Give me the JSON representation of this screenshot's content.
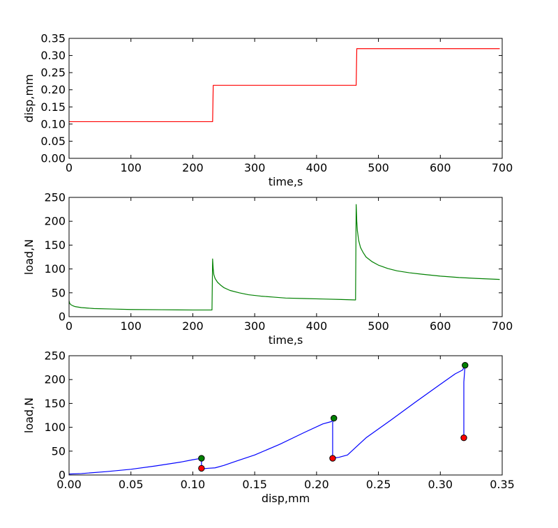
{
  "chart_data": [
    {
      "type": "line",
      "xlabel": "time,s",
      "ylabel": "disp,mm",
      "xlim": [
        0,
        700
      ],
      "ylim": [
        0,
        0.35
      ],
      "xticks": [
        0,
        100,
        200,
        300,
        400,
        500,
        600,
        700
      ],
      "xtick_labels": [
        "0",
        "100",
        "200",
        "300",
        "400",
        "500",
        "600",
        "700"
      ],
      "yticks": [
        0,
        0.05,
        0.1,
        0.15,
        0.2,
        0.25,
        0.3,
        0.35
      ],
      "ytick_labels": [
        "0.00",
        "0.05",
        "0.10",
        "0.15",
        "0.20",
        "0.25",
        "0.30",
        "0.35"
      ],
      "grid": false,
      "series": [
        {
          "color": "#ff0000",
          "x": [
            0,
            232,
            233,
            464,
            465,
            696
          ],
          "y": [
            0.107,
            0.107,
            0.213,
            0.213,
            0.32,
            0.32
          ]
        }
      ]
    },
    {
      "type": "line",
      "xlabel": "time,s",
      "ylabel": "load,N",
      "xlim": [
        0,
        700
      ],
      "ylim": [
        0,
        250
      ],
      "xticks": [
        0,
        100,
        200,
        300,
        400,
        500,
        600,
        700
      ],
      "xtick_labels": [
        "0",
        "100",
        "200",
        "300",
        "400",
        "500",
        "600",
        "700"
      ],
      "yticks": [
        0,
        50,
        100,
        150,
        200,
        250
      ],
      "ytick_labels": [
        "0",
        "50",
        "100",
        "150",
        "200",
        "250"
      ],
      "grid": false,
      "series": [
        {
          "color": "#008000",
          "x": [
            0,
            1,
            3,
            6,
            10,
            20,
            40,
            70,
            100,
            150,
            200,
            231,
            232,
            233,
            234,
            236,
            240,
            245,
            250,
            260,
            275,
            290,
            310,
            330,
            350,
            380,
            410,
            440,
            463,
            464,
            465,
            466,
            468,
            471,
            475,
            480,
            490,
            500,
            515,
            530,
            550,
            570,
            600,
            630,
            660,
            696
          ],
          "y": [
            33,
            28,
            25,
            23,
            21,
            19,
            17,
            16,
            15,
            14.5,
            14,
            14,
            121,
            100,
            88,
            80,
            72,
            66,
            61,
            55,
            50,
            46,
            43,
            41,
            39,
            38,
            37,
            36,
            35,
            235,
            200,
            180,
            160,
            145,
            135,
            125,
            115,
            108,
            101,
            96,
            92,
            89,
            85,
            82,
            80,
            78
          ]
        }
      ]
    },
    {
      "type": "line",
      "xlabel": "disp,mm",
      "ylabel": "load,N",
      "xlim": [
        0,
        0.35
      ],
      "ylim": [
        0,
        250
      ],
      "xticks": [
        0,
        0.05,
        0.1,
        0.15,
        0.2,
        0.25,
        0.3,
        0.35
      ],
      "xtick_labels": [
        "0.00",
        "0.05",
        "0.10",
        "0.15",
        "0.20",
        "0.25",
        "0.30",
        "0.35"
      ],
      "yticks": [
        0,
        50,
        100,
        150,
        200,
        250
      ],
      "ytick_labels": [
        "0",
        "50",
        "100",
        "150",
        "200",
        "250"
      ],
      "grid": false,
      "series": [
        {
          "color": "#0000ff",
          "x": [
            0,
            0.01,
            0.03,
            0.05,
            0.07,
            0.09,
            0.1,
            0.107,
            0.107,
            0.108,
            0.112,
            0.118,
            0.125,
            0.135,
            0.15,
            0.17,
            0.19,
            0.205,
            0.212,
            0.214,
            0.213,
            0.213,
            0.215,
            0.218,
            0.225,
            0.24,
            0.26,
            0.28,
            0.3,
            0.312,
            0.318,
            0.32,
            0.319,
            0.319
          ],
          "y": [
            2,
            3,
            7,
            12,
            19,
            27,
            32,
            35,
            14,
            13,
            14,
            15,
            20,
            29,
            42,
            64,
            89,
            107,
            112,
            119,
            110,
            35,
            36,
            37,
            42,
            78,
            115,
            153,
            190,
            212,
            220,
            230,
            195,
            78
          ]
        }
      ],
      "markers": [
        {
          "x": 0.107,
          "y": 35,
          "color": "#008000"
        },
        {
          "x": 0.214,
          "y": 119,
          "color": "#008000"
        },
        {
          "x": 0.32,
          "y": 230,
          "color": "#008000"
        },
        {
          "x": 0.107,
          "y": 14,
          "color": "#ff0000"
        },
        {
          "x": 0.213,
          "y": 35,
          "color": "#ff0000"
        },
        {
          "x": 0.319,
          "y": 78,
          "color": "#ff0000"
        }
      ]
    }
  ]
}
